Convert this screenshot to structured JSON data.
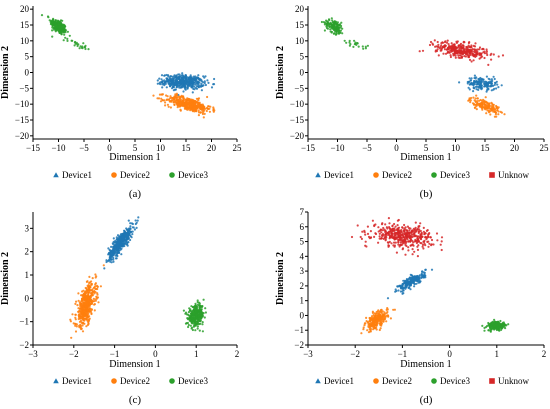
{
  "colors": {
    "Device1": "#1f77b4",
    "Device2": "#ff7f0e",
    "Device3": "#2ca02c",
    "Unknow": "#d62728",
    "axis": "#000000"
  },
  "chart_data": [
    {
      "type": "scatter",
      "panel_label": "(a)",
      "xlabel": "Dimension 1",
      "ylabel": "Dimension 2",
      "xlim": [
        -15,
        25
      ],
      "ylim": [
        -21,
        21
      ],
      "xticks": [
        -15,
        -10,
        -5,
        0,
        5,
        10,
        15,
        20,
        25
      ],
      "yticks": [
        -20,
        -15,
        -10,
        -5,
        0,
        5,
        10,
        15,
        20
      ],
      "legend_position": "bottom",
      "legend": [
        {
          "name": "Device1",
          "marker": "triangle",
          "color": "#1f77b4"
        },
        {
          "name": "Device2",
          "marker": "circle",
          "color": "#ff7f0e"
        },
        {
          "name": "Device3",
          "marker": "circle",
          "color": "#2ca02c"
        }
      ],
      "clusters": [
        {
          "series": "Device3",
          "n": 240,
          "cx": -10,
          "cy": 14.5,
          "sx": 0.8,
          "sy": 1.3,
          "rho": -0.6
        },
        {
          "series": "Device3",
          "n": 25,
          "cx": -6.5,
          "cy": 9,
          "sx": 1.0,
          "sy": 0.8,
          "rho": -0.8
        },
        {
          "series": "Device1",
          "n": 420,
          "cx": 14.5,
          "cy": -3,
          "sx": 2.0,
          "sy": 1.1,
          "rho": -0.15
        },
        {
          "series": "Device2",
          "n": 400,
          "cx": 15.5,
          "cy": -10,
          "sx": 2.2,
          "sy": 1.3,
          "rho": -0.6
        }
      ]
    },
    {
      "type": "scatter",
      "panel_label": "(b)",
      "xlabel": "Dimension 1",
      "ylabel": "Dimension 2",
      "xlim": [
        -15,
        25
      ],
      "ylim": [
        -21,
        21
      ],
      "xticks": [
        -15,
        -10,
        -5,
        0,
        5,
        10,
        15,
        20,
        25
      ],
      "yticks": [
        -20,
        -15,
        -10,
        -5,
        0,
        5,
        10,
        15,
        20
      ],
      "legend_position": "bottom",
      "legend": [
        {
          "name": "Device1",
          "marker": "triangle",
          "color": "#1f77b4"
        },
        {
          "name": "Device2",
          "marker": "circle",
          "color": "#ff7f0e"
        },
        {
          "name": "Device3",
          "marker": "circle",
          "color": "#2ca02c"
        },
        {
          "name": "Unknow",
          "marker": "square",
          "color": "#d62728"
        }
      ],
      "clusters": [
        {
          "series": "Device3",
          "n": 130,
          "cx": -10.5,
          "cy": 14.5,
          "sx": 0.8,
          "sy": 1.2,
          "rho": -0.5
        },
        {
          "series": "Device3",
          "n": 20,
          "cx": -7,
          "cy": 9,
          "sx": 1.1,
          "sy": 0.9,
          "rho": -0.8
        },
        {
          "series": "Unknow",
          "n": 330,
          "cx": 11,
          "cy": 7,
          "sx": 2.2,
          "sy": 1.3,
          "rho": -0.5
        },
        {
          "series": "Device1",
          "n": 150,
          "cx": 14.5,
          "cy": -3.5,
          "sx": 1.3,
          "sy": 1.0,
          "rho": -0.2
        },
        {
          "series": "Device2",
          "n": 160,
          "cx": 15,
          "cy": -10.5,
          "sx": 1.3,
          "sy": 1.2,
          "rho": -0.6
        }
      ]
    },
    {
      "type": "scatter",
      "panel_label": "(c)",
      "xlabel": "Dimension 1",
      "ylabel": "Dimension 2",
      "xlim": [
        -3,
        2
      ],
      "ylim": [
        -2,
        3.7
      ],
      "xticks": [
        -3,
        -2,
        -1,
        0,
        1,
        2
      ],
      "yticks": [
        -2,
        -1,
        0,
        1,
        2,
        3
      ],
      "legend_position": "bottom",
      "legend": [
        {
          "name": "Device1",
          "marker": "triangle",
          "color": "#1f77b4"
        },
        {
          "name": "Device2",
          "marker": "circle",
          "color": "#ff7f0e"
        },
        {
          "name": "Device3",
          "marker": "circle",
          "color": "#2ca02c"
        }
      ],
      "clusters": [
        {
          "series": "Device1",
          "n": 420,
          "cx": -0.85,
          "cy": 2.4,
          "sx": 0.15,
          "sy": 0.35,
          "rho": 0.85
        },
        {
          "series": "Device2",
          "n": 480,
          "cx": -1.7,
          "cy": -0.3,
          "sx": 0.12,
          "sy": 0.45,
          "rho": 0.55
        },
        {
          "series": "Device3",
          "n": 320,
          "cx": 1.0,
          "cy": -0.75,
          "sx": 0.1,
          "sy": 0.22,
          "rho": 0.2
        }
      ]
    },
    {
      "type": "scatter",
      "panel_label": "(d)",
      "xlabel": "Dimension 1",
      "ylabel": "Dimension 2",
      "xlim": [
        -3,
        2
      ],
      "ylim": [
        -2,
        7
      ],
      "xticks": [
        -3,
        -2,
        -1,
        0,
        1,
        2
      ],
      "yticks": [
        -2,
        -1,
        0,
        1,
        2,
        3,
        4,
        5,
        6,
        7
      ],
      "legend_position": "bottom",
      "legend": [
        {
          "name": "Device1",
          "marker": "triangle",
          "color": "#1f77b4"
        },
        {
          "name": "Device2",
          "marker": "circle",
          "color": "#ff7f0e"
        },
        {
          "name": "Device3",
          "marker": "circle",
          "color": "#2ca02c"
        },
        {
          "name": "Unknow",
          "marker": "square",
          "color": "#d62728"
        }
      ],
      "clusters": [
        {
          "series": "Unknow",
          "n": 420,
          "cx": -1.0,
          "cy": 5.4,
          "sx": 0.32,
          "sy": 0.38,
          "rho": -0.2
        },
        {
          "series": "Device1",
          "n": 220,
          "cx": -0.8,
          "cy": 2.3,
          "sx": 0.14,
          "sy": 0.3,
          "rho": 0.8
        },
        {
          "series": "Device2",
          "n": 230,
          "cx": -1.55,
          "cy": -0.35,
          "sx": 0.12,
          "sy": 0.33,
          "rho": 0.6
        },
        {
          "series": "Device3",
          "n": 200,
          "cx": 1.0,
          "cy": -0.7,
          "sx": 0.1,
          "sy": 0.15,
          "rho": 0.1
        }
      ]
    }
  ]
}
